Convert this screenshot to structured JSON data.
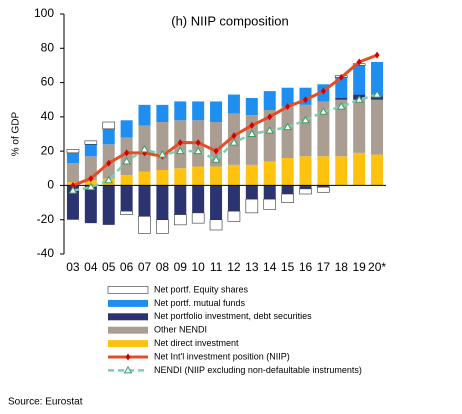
{
  "chart_data": {
    "type": "bar",
    "title": "(h) NIIP composition",
    "y_label": "% of GDP",
    "source": "Source: Eurostat",
    "categories": [
      "03",
      "04",
      "05",
      "06",
      "07",
      "08",
      "09",
      "10",
      "11",
      "12",
      "13",
      "14",
      "15",
      "16",
      "17",
      "18",
      "19",
      "20*"
    ],
    "ylim": [
      -40,
      100
    ],
    "yticks": [
      -40,
      -20,
      0,
      20,
      40,
      60,
      80,
      100
    ],
    "series": [
      {
        "name": "Net portf. Equity shares",
        "kind": "bar",
        "color": "#ffffff",
        "values": [
          2,
          2,
          4,
          -2,
          -10,
          -8,
          -6,
          -6,
          -6,
          -6,
          -8,
          -6,
          -5,
          -3,
          -3,
          1,
          1,
          0
        ]
      },
      {
        "name": "Net portf.  mutual funds",
        "kind": "bar",
        "color": "#1e8ff0",
        "values": [
          6,
          7,
          9,
          10,
          12,
          10,
          11,
          11,
          12,
          11,
          10,
          11,
          11,
          10,
          10,
          12,
          17,
          20
        ]
      },
      {
        "name": "Net portfolio investment, debt securities",
        "kind": "bar",
        "color": "#2b3470",
        "values": [
          -20,
          -22,
          -23,
          -15,
          -18,
          -20,
          -17,
          -16,
          -20,
          -15,
          -8,
          -8,
          -5,
          -2,
          -1,
          1,
          3,
          2
        ]
      },
      {
        "name": "Other NENDI",
        "kind": "bar",
        "color": "#aa9d92",
        "values": [
          11,
          14,
          20,
          22,
          27,
          28,
          28,
          27,
          26,
          30,
          29,
          30,
          30,
          30,
          32,
          33,
          31,
          32
        ]
      },
      {
        "name": "Net direct investment",
        "kind": "bar",
        "color": "#ffc20e",
        "values": [
          2,
          3,
          4,
          6,
          8,
          9,
          10,
          11,
          11,
          12,
          12,
          14,
          16,
          17,
          17,
          17,
          19,
          18
        ]
      },
      {
        "name": "Net Int'l investment position (NIIP)",
        "kind": "line",
        "color": "#e84c22",
        "values": [
          0,
          4,
          13,
          19,
          19,
          17,
          25,
          25,
          20,
          29,
          35,
          40,
          46,
          50,
          55,
          63,
          72,
          76
        ]
      },
      {
        "name": "NENDI (NIIP excluding non-defaultable instruments)",
        "kind": "dashed-line",
        "color": "#7ccfae",
        "values": [
          -3,
          -1,
          3,
          14,
          21,
          18,
          20,
          20,
          15,
          25,
          30,
          32,
          34,
          38,
          43,
          46,
          50,
          53
        ]
      }
    ]
  }
}
